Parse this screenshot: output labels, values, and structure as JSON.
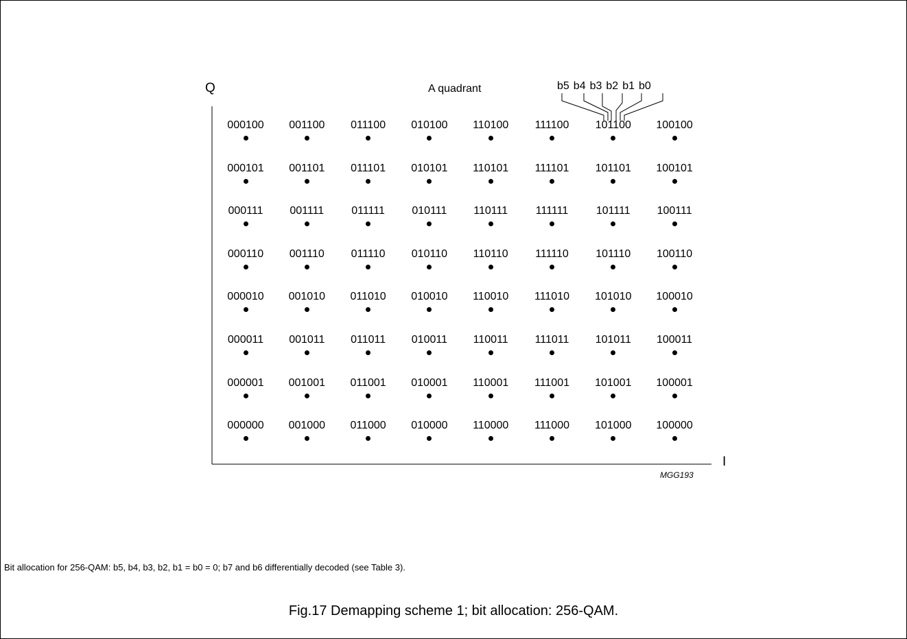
{
  "axes": {
    "y_label": "Q",
    "x_label": "I"
  },
  "quadrant_label": "A quadrant",
  "bit_names": [
    "b5",
    "b4",
    "b3",
    "b2",
    "b1",
    "b0"
  ],
  "figure_code": "MGG193",
  "rows": [
    [
      "000100",
      "001100",
      "011100",
      "010100",
      "110100",
      "111100",
      "101100",
      "100100"
    ],
    [
      "000101",
      "001101",
      "011101",
      "010101",
      "110101",
      "111101",
      "101101",
      "100101"
    ],
    [
      "000111",
      "001111",
      "011111",
      "010111",
      "110111",
      "111111",
      "101111",
      "100111"
    ],
    [
      "000110",
      "001110",
      "011110",
      "010110",
      "110110",
      "111110",
      "101110",
      "100110"
    ],
    [
      "000010",
      "001010",
      "011010",
      "010010",
      "110010",
      "111010",
      "101010",
      "100010"
    ],
    [
      "000011",
      "001011",
      "011011",
      "010011",
      "110011",
      "111011",
      "101011",
      "100011"
    ],
    [
      "000001",
      "001001",
      "011001",
      "010001",
      "110001",
      "111001",
      "101001",
      "100001"
    ],
    [
      "000000",
      "001000",
      "011000",
      "010000",
      "110000",
      "111000",
      "101000",
      "100000"
    ]
  ],
  "note": "Bit allocation for 256-QAM: b5, b4, b3, b2, b1 = b0 = 0; b7 and b6 differentially decoded (see Table 3).",
  "caption": "Fig.17  Demapping scheme 1; bit allocation: 256-QAM."
}
